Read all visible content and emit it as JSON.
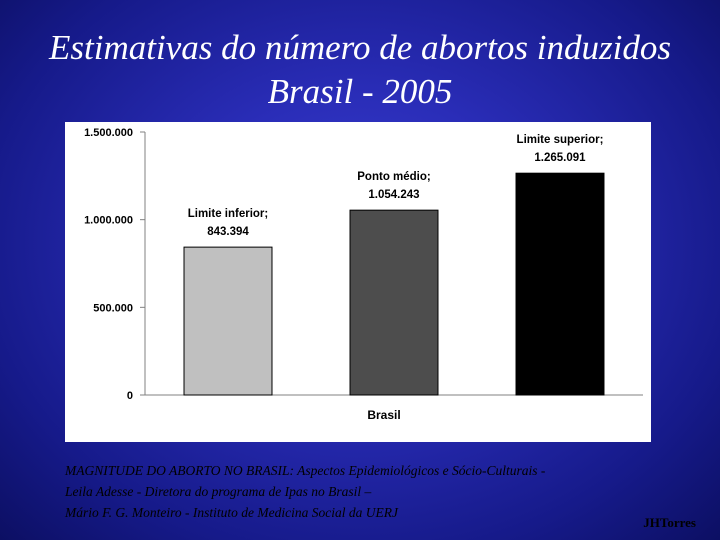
{
  "slide": {
    "title_line1": "Estimativas do número de abortos induzidos",
    "title_line2": "Brasil  -  2005"
  },
  "chart_data": {
    "type": "bar",
    "categories": [
      "Limite inferior",
      "Ponto médio",
      "Limite superior"
    ],
    "values": [
      843394,
      1054243,
      1265091
    ],
    "data_labels": [
      [
        "Limite inferior;",
        "843.394"
      ],
      [
        "Ponto médio;",
        "1.054.243"
      ],
      [
        "Limite superior;",
        "1.265.091"
      ]
    ],
    "bar_colors": [
      "#c0c0c0",
      "#4d4d4d",
      "#000000"
    ],
    "title": "",
    "xlabel": "Brasil",
    "ylabel": "",
    "ylim": [
      0,
      1500000
    ],
    "y_ticks": [
      0,
      500000,
      1000000,
      1500000
    ],
    "y_tick_labels": [
      "0",
      "500.000",
      "1.000.000",
      "1.500.000"
    ],
    "grid": false,
    "legend": "none"
  },
  "caption": {
    "line1": "MAGNITUDE DO ABORTO NO BRASIL: Aspectos Epidemiológicos e Sócio-Culturais -",
    "line2": "Leila Adesse  - Diretora do programa de Ipas no Brasil –",
    "line3": "Mário F. G. Monteiro  -  Instituto de Medicina Social da UERJ"
  },
  "credit": "JHTorres"
}
